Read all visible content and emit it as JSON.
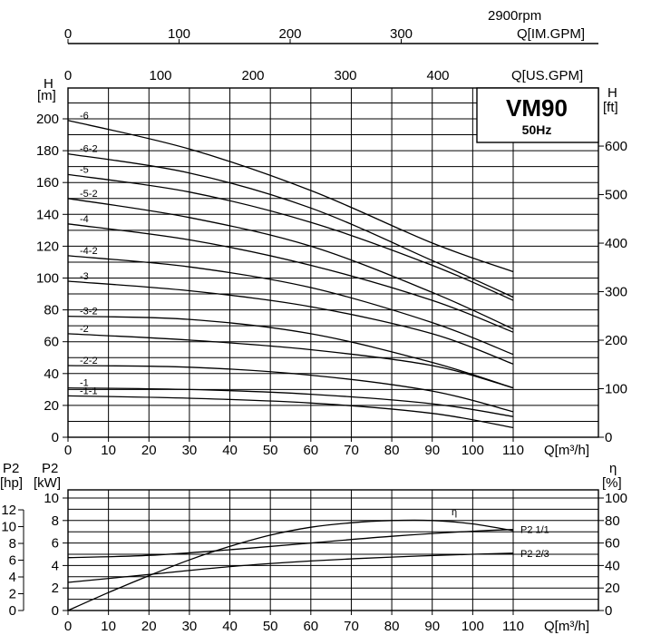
{
  "header": {
    "speed": "2900rpm",
    "flow_im_label": "Q[IM.GPM]",
    "flow_us_label": "Q[US.GPM]",
    "flow_im_ticks": [
      "0",
      "100",
      "200",
      "300"
    ],
    "flow_us_ticks": [
      "0",
      "100",
      "200",
      "300",
      "400"
    ]
  },
  "model_box": {
    "model": "VM90",
    "frequency": "50Hz"
  },
  "head_chart": {
    "y_left_unit_line1": "H",
    "y_left_unit_line2": "[m]",
    "y_right_unit_line1": "H",
    "y_right_unit_line2": "[ft]",
    "x_label": "Q[m³/h]",
    "x_ticks": [
      "0",
      "10",
      "20",
      "30",
      "40",
      "50",
      "60",
      "70",
      "80",
      "90",
      "100",
      "110"
    ],
    "y_left_ticks": [
      "0",
      "20",
      "40",
      "60",
      "80",
      "100",
      "120",
      "140",
      "160",
      "180",
      "200"
    ],
    "y_right_ticks": [
      "0",
      "100",
      "200",
      "300",
      "400",
      "500",
      "600"
    ]
  },
  "power_chart": {
    "y_hp_unit_line1": "P2",
    "y_hp_unit_line2": "[hp]",
    "y_kw_unit_line1": "P2",
    "y_kw_unit_line2": "[kW]",
    "y_eff_unit_line1": "η",
    "y_eff_unit_line2": "[%]",
    "x_label": "Q[m³/h]",
    "x_ticks": [
      "0",
      "10",
      "20",
      "30",
      "40",
      "50",
      "60",
      "70",
      "80",
      "90",
      "100",
      "110"
    ],
    "y_kw_ticks": [
      "0",
      "2",
      "4",
      "6",
      "8",
      "10"
    ],
    "y_hp_ticks": [
      "0",
      "2",
      "4",
      "6",
      "8",
      "10",
      "12"
    ],
    "y_eff_ticks": [
      "0",
      "20",
      "40",
      "60",
      "80",
      "100"
    ]
  },
  "chart_data": [
    {
      "type": "line",
      "ylabel": "H [m]",
      "xlabel": "Q[m³/h]",
      "xlim": [
        0,
        110
      ],
      "ylim": [
        0,
        200
      ],
      "grid": true,
      "series": [
        {
          "name": "-6",
          "x": [
            0,
            30,
            60,
            90,
            110
          ],
          "y": [
            199,
            181,
            155,
            122,
            104
          ]
        },
        {
          "name": "-6-2",
          "x": [
            0,
            30,
            60,
            90,
            110
          ],
          "y": [
            178,
            166,
            144,
            111,
            88
          ]
        },
        {
          "name": "-5",
          "x": [
            0,
            30,
            60,
            90,
            110
          ],
          "y": [
            165,
            154,
            135,
            108,
            86
          ]
        },
        {
          "name": "-5-2",
          "x": [
            0,
            30,
            60,
            90,
            110
          ],
          "y": [
            150,
            138,
            120,
            91,
            68
          ]
        },
        {
          "name": "-4",
          "x": [
            0,
            30,
            60,
            90,
            110
          ],
          "y": [
            134,
            124,
            108,
            86,
            66
          ]
        },
        {
          "name": "-4-2",
          "x": [
            0,
            30,
            60,
            90,
            110
          ],
          "y": [
            114,
            107,
            94,
            72,
            52
          ]
        },
        {
          "name": "-3",
          "x": [
            0,
            30,
            60,
            90,
            110
          ],
          "y": [
            98,
            92,
            82,
            65,
            46
          ]
        },
        {
          "name": "-3-2",
          "x": [
            0,
            30,
            60,
            90,
            110
          ],
          "y": [
            76,
            74,
            65,
            47,
            31
          ]
        },
        {
          "name": "-2",
          "x": [
            0,
            30,
            60,
            90,
            110
          ],
          "y": [
            65,
            61,
            55,
            45,
            31
          ]
        },
        {
          "name": "-2-2",
          "x": [
            0,
            30,
            60,
            90,
            110
          ],
          "y": [
            45,
            44,
            39,
            29,
            16
          ]
        },
        {
          "name": "-1",
          "x": [
            0,
            30,
            60,
            90,
            110
          ],
          "y": [
            31,
            30,
            27,
            21,
            13
          ]
        },
        {
          "name": "-1-1",
          "x": [
            0,
            30,
            60,
            90,
            110
          ],
          "y": [
            26,
            24.5,
            21.5,
            15,
            6
          ]
        }
      ]
    },
    {
      "type": "line",
      "ylabel": "P2 [kW] / η [%]",
      "xlabel": "Q[m³/h]",
      "xlim": [
        0,
        110
      ],
      "ylim": [
        0,
        10
      ],
      "grid": true,
      "series": [
        {
          "name": "P2 1/1",
          "x": [
            0,
            20,
            40,
            60,
            80,
            100,
            110
          ],
          "y": [
            4.7,
            4.9,
            5.4,
            6.0,
            6.6,
            7.05,
            7.2
          ]
        },
        {
          "name": "P2 2/3",
          "x": [
            0,
            20,
            40,
            60,
            80,
            100,
            110
          ],
          "y": [
            2.5,
            3.2,
            3.9,
            4.4,
            4.75,
            5.0,
            5.1
          ]
        },
        {
          "name": "η",
          "x": [
            0,
            10,
            20,
            30,
            40,
            50,
            60,
            70,
            80,
            90,
            100,
            110
          ],
          "y": [
            0,
            1.6,
            3.1,
            4.5,
            5.7,
            6.7,
            7.4,
            7.8,
            8.0,
            8.0,
            7.7,
            7.1
          ]
        }
      ]
    }
  ]
}
